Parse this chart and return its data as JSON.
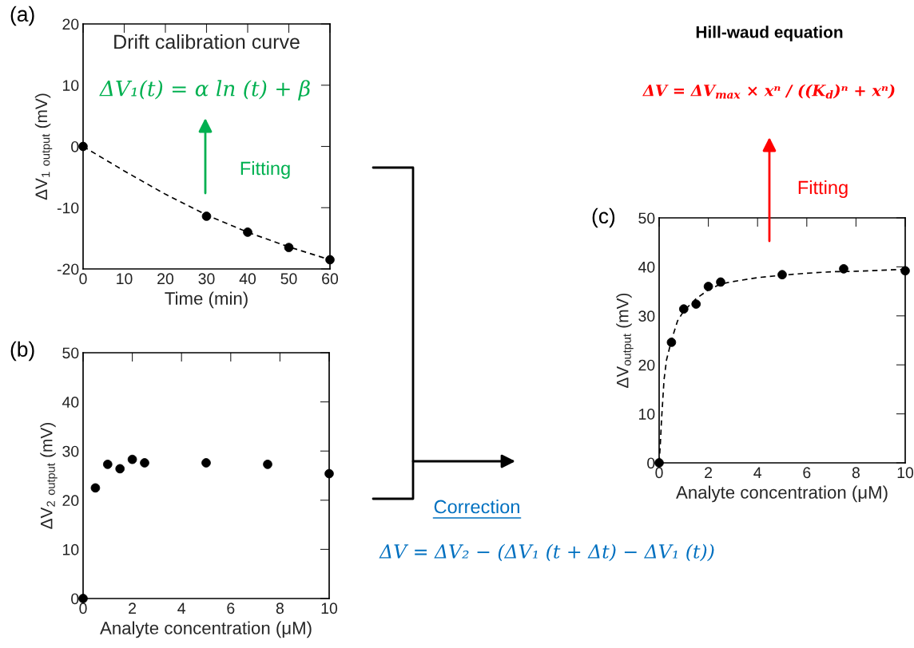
{
  "chart_data": [
    {
      "type": "scatter",
      "title": "Drift calibration curve",
      "xlabel": "Time (min)",
      "ylabel": "ΔV$_{1}$ $_{output}$ (mV)",
      "xlim": [
        0,
        60
      ],
      "ylim": [
        -20,
        20
      ],
      "xticks": [
        0,
        10,
        20,
        30,
        40,
        50,
        60
      ],
      "yticks": [
        -20,
        -10,
        0,
        10,
        20
      ],
      "grid": false,
      "legend": false,
      "marker": "circle",
      "annotations": [
        "(a)",
        "ΔV₁(t) = α ln (t) + β",
        "Fitting"
      ],
      "series": [
        {
          "color": "#000000",
          "x": [
            0,
            30,
            40,
            50,
            60
          ],
          "values": [
            0,
            -11.4,
            -14,
            -16.5,
            -18.5
          ]
        },
        {
          "type": "line",
          "color": "#000000",
          "line_style": "dashed",
          "marker": "none",
          "x": [
            0,
            10,
            20,
            30,
            40,
            50,
            60
          ],
          "values": [
            0,
            -4,
            -7.8,
            -11.2,
            -14,
            -16.4,
            -18.5
          ]
        }
      ]
    },
    {
      "type": "scatter",
      "xlabel": "Analyte concentration (μM)",
      "ylabel": "ΔV$_{2}$ $_{output}$ (mV)",
      "xlim": [
        0,
        10
      ],
      "ylim": [
        0,
        50
      ],
      "xticks": [
        0,
        2,
        4,
        6,
        8,
        10
      ],
      "yticks": [
        0,
        10,
        20,
        30,
        40,
        50
      ],
      "grid": false,
      "legend": false,
      "marker": "circle",
      "annotations": [
        "(b)"
      ],
      "series": [
        {
          "color": "#000000",
          "x": [
            0,
            0.5,
            1,
            1.5,
            2,
            2.5,
            5,
            7.5,
            10
          ],
          "values": [
            0,
            22.5,
            27.3,
            26.4,
            28.3,
            27.6,
            27.6,
            27.3,
            25.4
          ]
        }
      ]
    },
    {
      "type": "scatter",
      "xlabel": "Analyte concentration (μM)",
      "ylabel": "ΔV$_{output}$ (mV)",
      "xlim": [
        0,
        10
      ],
      "ylim": [
        0,
        50
      ],
      "xticks": [
        0,
        2,
        4,
        6,
        8,
        10
      ],
      "yticks": [
        0,
        10,
        20,
        30,
        40,
        50
      ],
      "grid": false,
      "legend": false,
      "marker": "circle",
      "annotations": [
        "(c)",
        "Hill-waud equation",
        "ΔV = ΔV$_{max}$ × xⁿ / ((K$_{d}$)ⁿ + xⁿ)",
        "Fitting",
        "Correction",
        "ΔV = ΔV₂ − (ΔV₁ (t + Δt) − ΔV₁ (t))"
      ],
      "series": [
        {
          "color": "#000000",
          "x": [
            0,
            0.5,
            1,
            1.5,
            2,
            2.5,
            5,
            7.5,
            10
          ],
          "values": [
            0,
            24.6,
            31.4,
            32.4,
            36,
            36.9,
            38.4,
            39.6,
            39.2
          ]
        },
        {
          "type": "line",
          "color": "#000000",
          "line_style": "dashed",
          "marker": "none",
          "x": [
            0,
            0.05,
            0.1,
            0.2,
            0.3,
            0.5,
            0.75,
            1,
            1.5,
            2,
            2.5,
            3,
            4,
            5,
            6,
            7,
            8,
            9,
            10
          ],
          "values": [
            0,
            4,
            9,
            17,
            21,
            25,
            29,
            31,
            33.5,
            35.3,
            36.5,
            37,
            37.8,
            38.3,
            38.7,
            39,
            39.1,
            39.3,
            39.5
          ]
        }
      ]
    }
  ]
}
